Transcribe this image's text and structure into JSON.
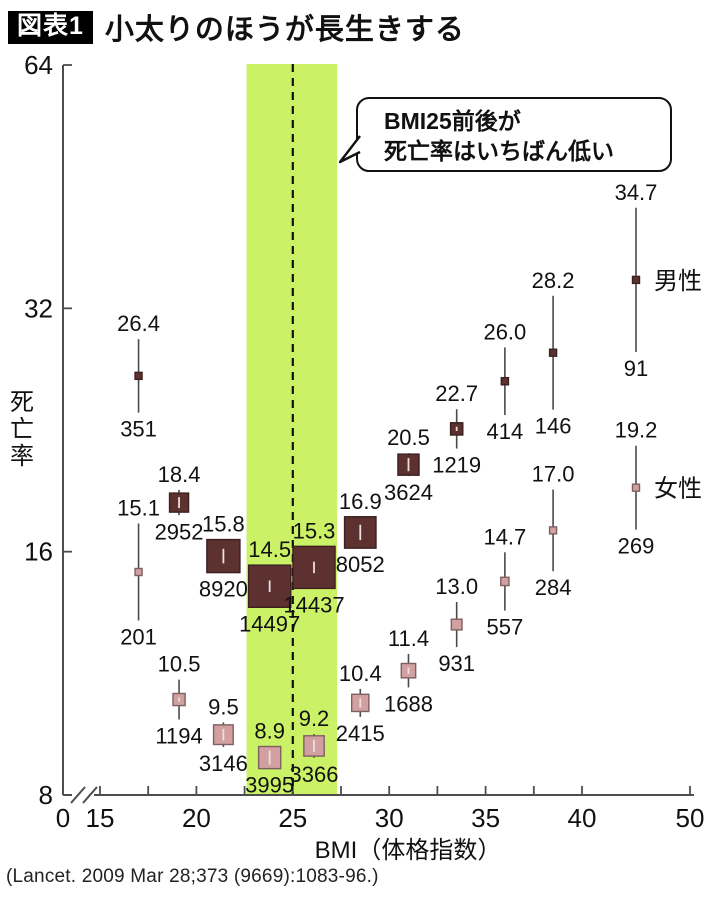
{
  "header": {
    "badge": "図表1",
    "title": "小太りのほうが長生きする"
  },
  "callout": {
    "line1": "BMI25前後が",
    "line2": "死亡率はいちばん低い"
  },
  "source": "(Lancet. 2009 Mar 28;373 (9669):1083-96.)",
  "colors": {
    "male_fill": "#5e3131",
    "male_border": "#3c1f1f",
    "female_fill": "#d2a0a0",
    "female_border": "#7d6060",
    "band": "#cbf266",
    "axis": "#4d4d4d",
    "whisker": "#4a4a4a",
    "text": "#111111"
  },
  "chart_data": {
    "type": "scatter",
    "title": "小太りのほうが長生きする",
    "xlabel": "BMI（体格指数）",
    "ylabel": "死亡率",
    "y_scale": "log2",
    "ylim": [
      8,
      64
    ],
    "y_ticks": [
      8,
      16,
      32,
      64
    ],
    "x_ticks": [
      0,
      15,
      20,
      25,
      30,
      35,
      40,
      50
    ],
    "x_minor_ticks": [
      17.5,
      22.5,
      27.5,
      32.5,
      37.5
    ],
    "x_axis_break_between": [
      0,
      15
    ],
    "grid": false,
    "highlight_band": {
      "x_from": 22.6,
      "x_to": 27.3
    },
    "reference_line_x": 25,
    "legend_position": "right-inline",
    "series": [
      {
        "name": "男性",
        "points": [
          {
            "bmi": 17.0,
            "rate": "26.4",
            "n": 351
          },
          {
            "bmi": 19.1,
            "rate": "18.4",
            "n": 2952
          },
          {
            "bmi": 21.4,
            "rate": "15.8",
            "n": 8920
          },
          {
            "bmi": 23.8,
            "rate": "14.5",
            "n": 14497
          },
          {
            "bmi": 26.1,
            "rate": "15.3",
            "n": 14437
          },
          {
            "bmi": 28.5,
            "rate": "16.9",
            "n": 8052
          },
          {
            "bmi": 31.0,
            "rate": "20.5",
            "n": 3624
          },
          {
            "bmi": 33.5,
            "rate": "22.7",
            "n": 1219
          },
          {
            "bmi": 36.0,
            "rate": "26.0",
            "n": 414
          },
          {
            "bmi": 38.5,
            "rate": "28.2",
            "n": 146
          },
          {
            "bmi": 45.0,
            "rate": "34.7",
            "n": 91
          }
        ]
      },
      {
        "name": "女性",
        "points": [
          {
            "bmi": 17.0,
            "rate": "15.1",
            "n": 201
          },
          {
            "bmi": 19.1,
            "rate": "10.5",
            "n": 1194
          },
          {
            "bmi": 21.4,
            "rate": "9.5",
            "n": 3146
          },
          {
            "bmi": 23.8,
            "rate": "8.9",
            "n": 3995
          },
          {
            "bmi": 26.1,
            "rate": "9.2",
            "n": 3366
          },
          {
            "bmi": 28.5,
            "rate": "10.4",
            "n": 2415
          },
          {
            "bmi": 31.0,
            "rate": "11.4",
            "n": 1688
          },
          {
            "bmi": 33.5,
            "rate": "13.0",
            "n": 931
          },
          {
            "bmi": 36.0,
            "rate": "14.7",
            "n": 557
          },
          {
            "bmi": 38.5,
            "rate": "17.0",
            "n": 284
          },
          {
            "bmi": 45.0,
            "rate": "19.2",
            "n": 269
          }
        ]
      }
    ]
  }
}
